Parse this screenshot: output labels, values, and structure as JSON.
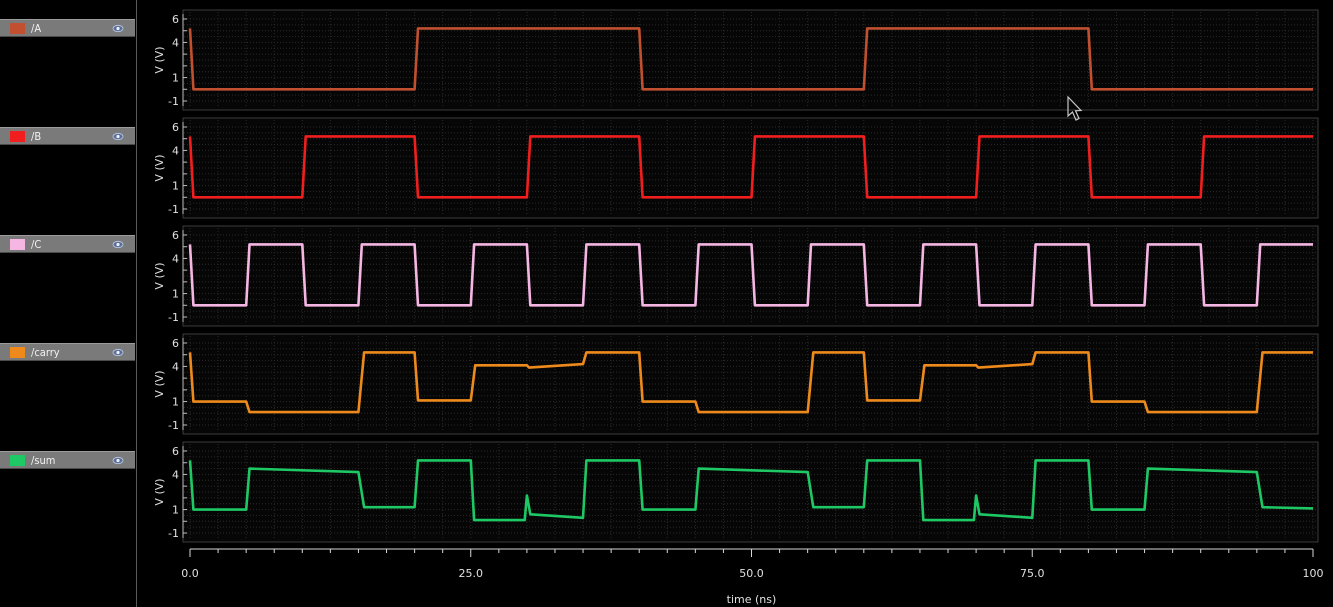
{
  "chart_data": {
    "type": "line",
    "xlabel": "time (ns)",
    "xlim": [
      0,
      100
    ],
    "x_ticks": [
      "0.0",
      "25.0",
      "50.0",
      "75.0",
      "100"
    ],
    "ylabel": "V (V)",
    "ylim": [
      -1,
      6
    ],
    "y_ticks": [
      "6",
      "4",
      "1",
      "-1"
    ],
    "grid": true,
    "series": [
      {
        "name": "/A",
        "color": "#c0502f",
        "x": [
          0,
          0.3,
          20,
          20.3,
          40,
          40.3,
          60,
          60.3,
          80,
          80.3,
          100
        ],
        "y": [
          5.2,
          0,
          0,
          5.2,
          5.2,
          0,
          0,
          5.2,
          5.2,
          0,
          0
        ]
      },
      {
        "name": "/B",
        "color": "#f01e1e",
        "x": [
          0,
          0.3,
          10,
          10.3,
          20,
          20.3,
          30,
          30.3,
          40,
          40.3,
          50,
          50.3,
          60,
          60.3,
          70,
          70.3,
          80,
          80.3,
          90,
          90.3,
          100
        ],
        "y": [
          5.2,
          0,
          0,
          5.2,
          5.2,
          0,
          0,
          5.2,
          5.2,
          0,
          0,
          5.2,
          5.2,
          0,
          0,
          5.2,
          5.2,
          0,
          0,
          5.2,
          5.2
        ]
      },
      {
        "name": "/C",
        "color": "#f5b6e4",
        "x": [
          0,
          0.3,
          5,
          5.3,
          10,
          10.3,
          15,
          15.3,
          20,
          20.3,
          25,
          25.3,
          30,
          30.3,
          35,
          35.3,
          40,
          40.3,
          45,
          45.3,
          50,
          50.3,
          55,
          55.3,
          60,
          60.3,
          65,
          65.3,
          70,
          70.3,
          75,
          75.3,
          80,
          80.3,
          85,
          85.3,
          90,
          90.3,
          95,
          95.3,
          100
        ],
        "y": [
          5.2,
          0,
          0,
          5.2,
          5.2,
          0,
          0,
          5.2,
          5.2,
          0,
          0,
          5.2,
          5.2,
          0,
          0,
          5.2,
          5.2,
          0,
          0,
          5.2,
          5.2,
          0,
          0,
          5.2,
          5.2,
          0,
          0,
          5.2,
          5.2,
          0,
          0,
          5.2,
          5.2,
          0,
          0,
          5.2,
          5.2,
          0,
          0,
          5.2,
          5.2
        ]
      },
      {
        "name": "/carry",
        "color": "#ee8a1c",
        "x": [
          0,
          0.3,
          5,
          5.3,
          15,
          15.5,
          20,
          20.3,
          25,
          25.4,
          30,
          30.2,
          35,
          35.3,
          40,
          40.3,
          45,
          45.3,
          55,
          55.5,
          60,
          60.3,
          65,
          65.4,
          70,
          70.2,
          75,
          75.3,
          80,
          80.3,
          85,
          85.3,
          95,
          95.5,
          100
        ],
        "y": [
          5.2,
          1.0,
          1.0,
          0.1,
          0.1,
          5.2,
          5.2,
          1.1,
          1.1,
          4.1,
          4.1,
          3.9,
          4.2,
          5.2,
          5.2,
          1.0,
          1.0,
          0.1,
          0.1,
          5.2,
          5.2,
          1.1,
          1.1,
          4.1,
          4.1,
          3.9,
          4.2,
          5.2,
          5.2,
          1.0,
          1.0,
          0.1,
          0.1,
          5.2,
          5.2
        ]
      },
      {
        "name": "/sum",
        "color": "#1ec864",
        "x": [
          0,
          0.3,
          5,
          5.3,
          15,
          15.5,
          20,
          20.3,
          25,
          25.3,
          29.8,
          30,
          30.3,
          35,
          35.3,
          40,
          40.3,
          45,
          45.3,
          55,
          55.5,
          60,
          60.3,
          65,
          65.3,
          69.8,
          70,
          70.3,
          75,
          75.3,
          80,
          80.3,
          85,
          85.3,
          95,
          95.5,
          100
        ],
        "y": [
          5.2,
          1.0,
          1.0,
          4.5,
          4.2,
          1.2,
          1.2,
          5.2,
          5.2,
          0.1,
          0.1,
          2.2,
          0.6,
          0.3,
          5.2,
          5.2,
          1.0,
          1.0,
          4.5,
          4.2,
          1.2,
          1.2,
          5.2,
          5.2,
          0.1,
          0.1,
          2.2,
          0.6,
          0.3,
          5.2,
          5.2,
          1.0,
          1.0,
          4.5,
          4.2,
          1.2,
          1.1
        ]
      }
    ]
  },
  "icons": {
    "visibility": "eye-icon",
    "cursor": "mouse-pointer-icon"
  }
}
